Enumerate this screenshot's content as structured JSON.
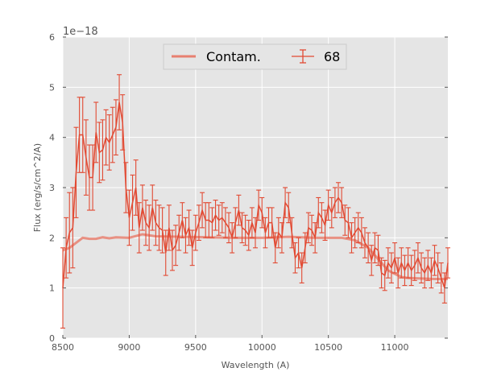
{
  "chart_data": {
    "type": "line",
    "title": "",
    "xlabel": "Wavelength (A)",
    "ylabel": "Flux (erg/s/cm^2/A)",
    "offset_text": "1e−18",
    "xlim": [
      8500,
      11400
    ],
    "ylim": [
      0,
      6
    ],
    "xticks": [
      8500,
      9000,
      9500,
      10000,
      10500,
      11000
    ],
    "xtick_labels": [
      "8500",
      "9000",
      "9500",
      "10000",
      "10500",
      "11000"
    ],
    "yticks": [
      0,
      1,
      2,
      3,
      4,
      5,
      6
    ],
    "ytick_labels": [
      "0",
      "1",
      "2",
      "3",
      "4",
      "5",
      "6"
    ],
    "grid": true,
    "legend": {
      "placement": "top-center",
      "entries": [
        "Contam.",
        "68"
      ]
    },
    "colors": {
      "data": "#e24a33",
      "contam": "#e88070",
      "background": "#e5e5e5",
      "grid": "#ffffff"
    },
    "series": [
      {
        "name": "68",
        "kind": "errorbar",
        "x_start": 8500,
        "x_step": 25,
        "y": [
          1.0,
          1.8,
          2.1,
          2.2,
          3.3,
          4.05,
          4.05,
          3.6,
          3.2,
          3.2,
          4.1,
          3.7,
          3.75,
          4.0,
          3.9,
          4.05,
          4.2,
          4.7,
          4.3,
          3.0,
          2.4,
          2.7,
          3.0,
          2.2,
          2.6,
          2.3,
          2.2,
          2.6,
          2.3,
          2.2,
          2.15,
          1.7,
          2.2,
          1.75,
          1.85,
          2.1,
          2.35,
          2.05,
          2.2,
          1.8,
          2.1,
          2.3,
          2.55,
          2.35,
          2.35,
          2.3,
          2.45,
          2.35,
          2.4,
          2.3,
          2.2,
          2.0,
          2.3,
          2.55,
          2.2,
          2.15,
          2.05,
          2.3,
          2.1,
          2.65,
          2.5,
          2.1,
          2.3,
          2.3,
          1.8,
          2.1,
          2.0,
          2.7,
          2.6,
          2.1,
          1.6,
          1.7,
          1.4,
          1.8,
          2.2,
          2.15,
          2.0,
          2.5,
          2.4,
          2.25,
          2.65,
          2.5,
          2.7,
          2.8,
          2.7,
          2.35,
          2.3,
          2.0,
          2.1,
          2.2,
          2.1,
          1.9,
          1.8,
          1.55,
          1.8,
          1.75,
          1.3,
          1.25,
          1.5,
          1.4,
          1.6,
          1.3,
          1.5,
          1.35,
          1.5,
          1.35,
          1.45,
          1.6,
          1.4,
          1.3,
          1.45,
          1.3,
          1.55,
          1.4,
          1.2,
          1.0,
          1.5
        ],
        "yerr": [
          0.8,
          0.6,
          0.8,
          0.8,
          0.9,
          0.75,
          0.75,
          0.75,
          0.65,
          0.65,
          0.6,
          0.6,
          0.6,
          0.55,
          0.55,
          0.55,
          0.55,
          0.55,
          0.55,
          0.5,
          0.55,
          0.55,
          0.55,
          0.5,
          0.45,
          0.45,
          0.45,
          0.45,
          0.45,
          0.45,
          0.45,
          0.45,
          0.45,
          0.4,
          0.4,
          0.35,
          0.35,
          0.35,
          0.35,
          0.35,
          0.35,
          0.35,
          0.35,
          0.35,
          0.35,
          0.3,
          0.3,
          0.3,
          0.3,
          0.3,
          0.3,
          0.3,
          0.3,
          0.3,
          0.3,
          0.3,
          0.3,
          0.3,
          0.3,
          0.3,
          0.3,
          0.3,
          0.3,
          0.3,
          0.3,
          0.3,
          0.3,
          0.3,
          0.3,
          0.3,
          0.3,
          0.3,
          0.3,
          0.3,
          0.3,
          0.3,
          0.3,
          0.3,
          0.3,
          0.3,
          0.3,
          0.3,
          0.3,
          0.3,
          0.3,
          0.3,
          0.3,
          0.3,
          0.3,
          0.3,
          0.3,
          0.3,
          0.3,
          0.3,
          0.3,
          0.3,
          0.3,
          0.3,
          0.3,
          0.3,
          0.3,
          0.3,
          0.3,
          0.3,
          0.3,
          0.3,
          0.3,
          0.3,
          0.3,
          0.3,
          0.3,
          0.3,
          0.3,
          0.3,
          0.3,
          0.3,
          0.3
        ]
      },
      {
        "name": "Contam.",
        "kind": "line",
        "x": [
          8500,
          8550,
          8600,
          8650,
          8700,
          8750,
          8800,
          8850,
          8900,
          9000,
          9100,
          9200,
          9400,
          9600,
          9800,
          10000,
          10200,
          10400,
          10600,
          10700,
          10800,
          10850,
          10900,
          10950,
          11000,
          11050,
          11100,
          11200,
          11300,
          11400
        ],
        "y": [
          1.75,
          1.8,
          1.9,
          2.0,
          1.98,
          1.98,
          2.01,
          1.99,
          2.01,
          2.0,
          2.07,
          2.03,
          2.02,
          2.01,
          2.0,
          2.0,
          2.02,
          2.0,
          2.0,
          1.95,
          1.8,
          1.65,
          1.5,
          1.35,
          1.28,
          1.22,
          1.2,
          1.19,
          1.18,
          1.18
        ]
      }
    ]
  }
}
